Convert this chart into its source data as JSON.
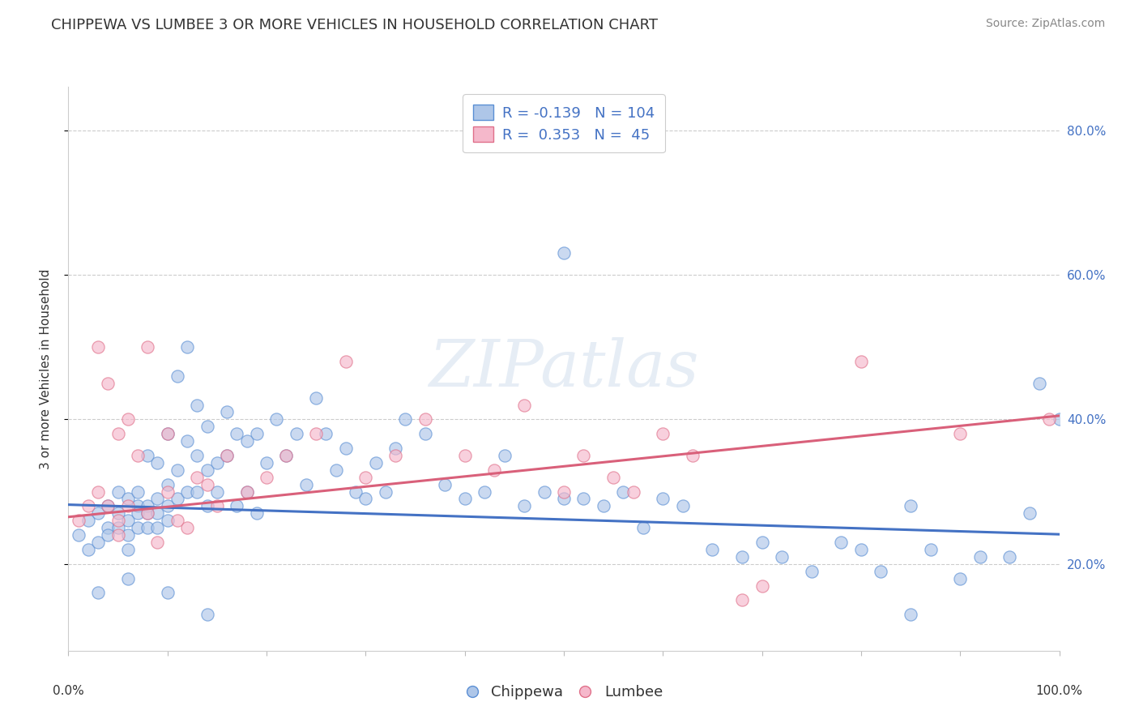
{
  "title": "CHIPPEWA VS LUMBEE 3 OR MORE VEHICLES IN HOUSEHOLD CORRELATION CHART",
  "source": "Source: ZipAtlas.com",
  "ylabel": "3 or more Vehicles in Household",
  "right_ytick_values": [
    0.2,
    0.4,
    0.6,
    0.8
  ],
  "watermark": "ZIPatlas",
  "chippewa_color": "#aec6e8",
  "lumbee_color": "#f5b8cb",
  "chippewa_edge_color": "#5b8fd4",
  "lumbee_edge_color": "#e0708a",
  "chippewa_line_color": "#4472c4",
  "lumbee_line_color": "#d9607a",
  "chippewa_R": -0.139,
  "chippewa_N": 104,
  "lumbee_R": 0.353,
  "lumbee_N": 45,
  "chippewa_x": [
    0.01,
    0.02,
    0.02,
    0.03,
    0.03,
    0.04,
    0.04,
    0.04,
    0.05,
    0.05,
    0.05,
    0.06,
    0.06,
    0.06,
    0.06,
    0.07,
    0.07,
    0.07,
    0.07,
    0.08,
    0.08,
    0.08,
    0.08,
    0.09,
    0.09,
    0.09,
    0.09,
    0.1,
    0.1,
    0.1,
    0.1,
    0.11,
    0.11,
    0.11,
    0.12,
    0.12,
    0.12,
    0.13,
    0.13,
    0.13,
    0.14,
    0.14,
    0.14,
    0.15,
    0.15,
    0.16,
    0.16,
    0.17,
    0.17,
    0.18,
    0.18,
    0.19,
    0.19,
    0.2,
    0.21,
    0.22,
    0.23,
    0.24,
    0.25,
    0.26,
    0.27,
    0.28,
    0.29,
    0.3,
    0.31,
    0.32,
    0.33,
    0.34,
    0.36,
    0.38,
    0.4,
    0.42,
    0.44,
    0.46,
    0.48,
    0.5,
    0.52,
    0.54,
    0.56,
    0.58,
    0.6,
    0.62,
    0.65,
    0.68,
    0.7,
    0.72,
    0.75,
    0.78,
    0.8,
    0.82,
    0.85,
    0.87,
    0.9,
    0.92,
    0.95,
    0.97,
    0.98,
    1.0,
    0.5,
    0.85,
    0.03,
    0.06,
    0.1,
    0.14
  ],
  "chippewa_y": [
    0.24,
    0.22,
    0.26,
    0.27,
    0.23,
    0.28,
    0.25,
    0.24,
    0.3,
    0.27,
    0.25,
    0.29,
    0.26,
    0.24,
    0.22,
    0.3,
    0.28,
    0.27,
    0.25,
    0.35,
    0.28,
    0.27,
    0.25,
    0.34,
    0.29,
    0.27,
    0.25,
    0.38,
    0.31,
    0.28,
    0.26,
    0.46,
    0.33,
    0.29,
    0.5,
    0.37,
    0.3,
    0.42,
    0.35,
    0.3,
    0.39,
    0.33,
    0.28,
    0.34,
    0.3,
    0.41,
    0.35,
    0.38,
    0.28,
    0.37,
    0.3,
    0.38,
    0.27,
    0.34,
    0.4,
    0.35,
    0.38,
    0.31,
    0.43,
    0.38,
    0.33,
    0.36,
    0.3,
    0.29,
    0.34,
    0.3,
    0.36,
    0.4,
    0.38,
    0.31,
    0.29,
    0.3,
    0.35,
    0.28,
    0.3,
    0.63,
    0.29,
    0.28,
    0.3,
    0.25,
    0.29,
    0.28,
    0.22,
    0.21,
    0.23,
    0.21,
    0.19,
    0.23,
    0.22,
    0.19,
    0.13,
    0.22,
    0.18,
    0.21,
    0.21,
    0.27,
    0.45,
    0.4,
    0.29,
    0.28,
    0.16,
    0.18,
    0.16,
    0.13
  ],
  "lumbee_x": [
    0.01,
    0.02,
    0.03,
    0.03,
    0.04,
    0.04,
    0.05,
    0.05,
    0.05,
    0.06,
    0.06,
    0.07,
    0.08,
    0.08,
    0.09,
    0.1,
    0.1,
    0.11,
    0.12,
    0.13,
    0.14,
    0.15,
    0.16,
    0.18,
    0.2,
    0.22,
    0.25,
    0.28,
    0.3,
    0.33,
    0.36,
    0.4,
    0.43,
    0.46,
    0.5,
    0.52,
    0.55,
    0.57,
    0.6,
    0.63,
    0.68,
    0.7,
    0.8,
    0.9,
    0.99
  ],
  "lumbee_y": [
    0.26,
    0.28,
    0.3,
    0.5,
    0.28,
    0.45,
    0.26,
    0.24,
    0.38,
    0.28,
    0.4,
    0.35,
    0.27,
    0.5,
    0.23,
    0.3,
    0.38,
    0.26,
    0.25,
    0.32,
    0.31,
    0.28,
    0.35,
    0.3,
    0.32,
    0.35,
    0.38,
    0.48,
    0.32,
    0.35,
    0.4,
    0.35,
    0.33,
    0.42,
    0.3,
    0.35,
    0.32,
    0.3,
    0.38,
    0.35,
    0.15,
    0.17,
    0.48,
    0.38,
    0.4
  ],
  "xlim": [
    0.0,
    1.0
  ],
  "ylim": [
    0.08,
    0.86
  ],
  "grid_color": "#cccccc",
  "background_color": "#ffffff",
  "title_fontsize": 13,
  "axis_label_fontsize": 11,
  "tick_fontsize": 11,
  "legend_fontsize": 13,
  "source_fontsize": 10,
  "marker_size": 120,
  "marker_alpha": 0.65,
  "line_width": 2.2,
  "chippewa_line_start_y": 0.282,
  "chippewa_line_end_y": 0.241,
  "lumbee_line_start_y": 0.265,
  "lumbee_line_end_y": 0.405
}
